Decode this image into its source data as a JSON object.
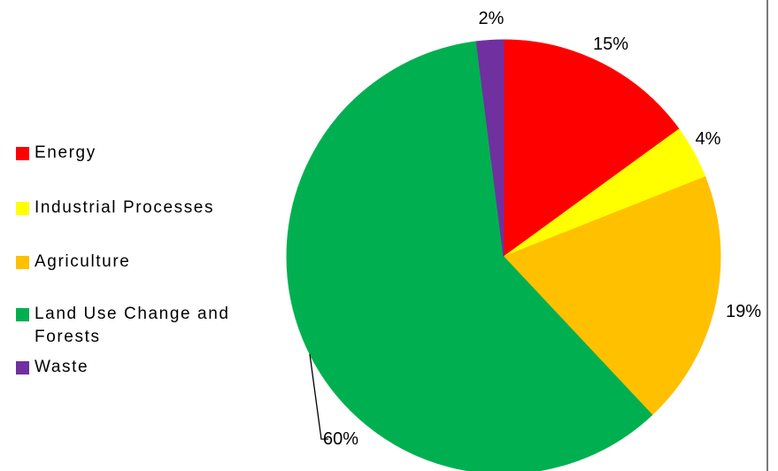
{
  "chart_data": {
    "type": "pie",
    "title": "",
    "slices": [
      {
        "label": "Energy",
        "value": 15,
        "display": "15%",
        "color": "#ff0000"
      },
      {
        "label": "Industrial Processes",
        "value": 4,
        "display": "4%",
        "color": "#ffff00"
      },
      {
        "label": "Agriculture",
        "value": 19,
        "display": "19%",
        "color": "#ffc000"
      },
      {
        "label": "Land Use Change and Forests",
        "value": 60,
        "display": "60%",
        "color": "#00b050"
      },
      {
        "label": "Waste",
        "value": 2,
        "display": "2%",
        "color": "#7030a0"
      }
    ],
    "legend_position": "left",
    "start_angle_deg": 0,
    "direction": "clockwise"
  }
}
